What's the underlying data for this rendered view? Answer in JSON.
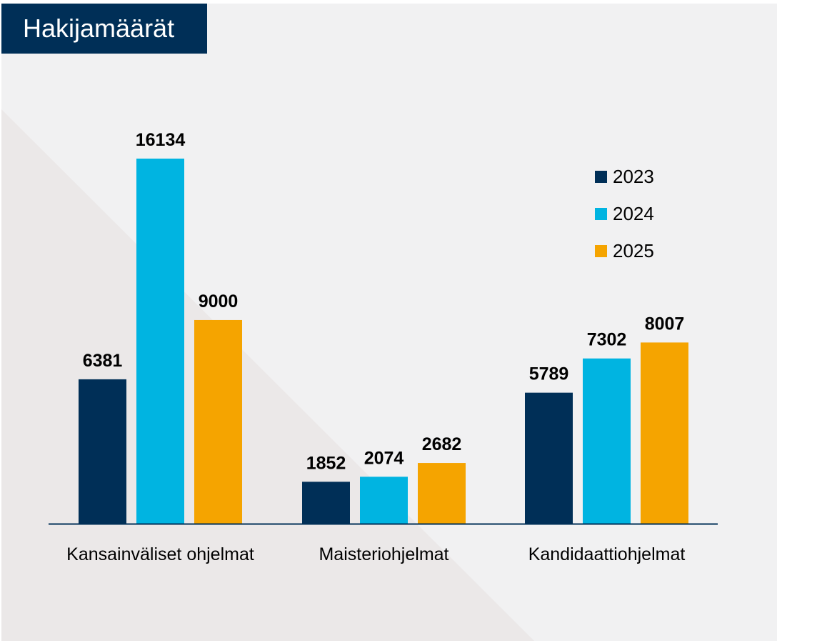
{
  "title": "Hakijamäärät",
  "chart_data": {
    "type": "bar",
    "categories": [
      "Kansainväliset ohjelmat",
      "Maisteriohjelmat",
      "Kandidaattiohjelmat"
    ],
    "series": [
      {
        "name": "2023",
        "values": [
          6381,
          1852,
          5789
        ],
        "color": "#002f57"
      },
      {
        "name": "2024",
        "values": [
          16134,
          2074,
          7302
        ],
        "color": "#00b4e1"
      },
      {
        "name": "2025",
        "values": [
          9000,
          2682,
          8007
        ],
        "color": "#f5a400"
      }
    ],
    "ylim": [
      0,
      16134
    ],
    "grid": false,
    "legend": "top-right",
    "data_labels": true
  },
  "colors": {
    "background": "#f1f1f2",
    "background_shade": "#ebe8e8",
    "title_bg": "#002f57",
    "title_text": "#ffffff",
    "axis": "#002f57"
  }
}
